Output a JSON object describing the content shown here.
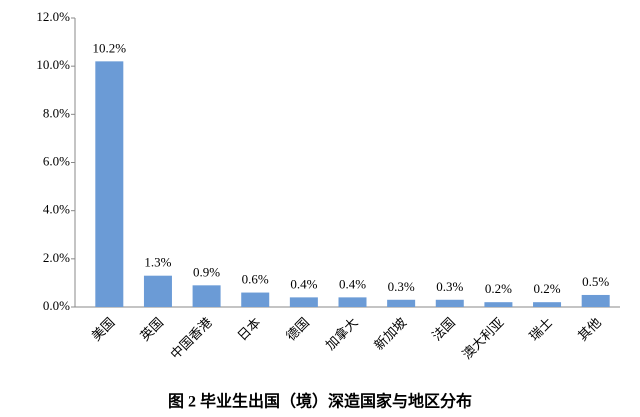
{
  "chart_data": {
    "type": "bar",
    "title": "图 2 毕业生出国（境）深造国家与地区分布",
    "categories": [
      "美国",
      "英国",
      "中国香港",
      "日本",
      "德国",
      "加拿大",
      "新加坡",
      "法国",
      "澳大利亚",
      "瑞士",
      "其他"
    ],
    "values": [
      10.2,
      1.3,
      0.9,
      0.6,
      0.4,
      0.4,
      0.3,
      0.3,
      0.2,
      0.2,
      0.5
    ],
    "value_labels": [
      "10.2%",
      "1.3%",
      "0.9%",
      "0.6%",
      "0.4%",
      "0.4%",
      "0.3%",
      "0.3%",
      "0.2%",
      "0.2%",
      "0.5%"
    ],
    "color": "#6b9bd6",
    "ylim": [
      0,
      12
    ],
    "yticks": [
      {
        "value": 0,
        "label": "0.0%"
      },
      {
        "value": 2,
        "label": "2.0%"
      },
      {
        "value": 4,
        "label": "4.0%"
      },
      {
        "value": 6,
        "label": "6.0%"
      },
      {
        "value": 8,
        "label": "8.0%"
      },
      {
        "value": 10,
        "label": "10.0%"
      },
      {
        "value": 12,
        "label": "12.0%"
      }
    ],
    "grid": false
  }
}
